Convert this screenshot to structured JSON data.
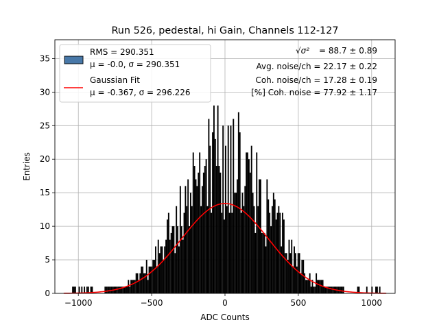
{
  "chart_data": {
    "type": "histogram",
    "title": "Run 526, pedestal, hi Gain, Channels 112-127",
    "xlabel": "ADC Counts",
    "ylabel": "Entries",
    "xlim": [
      -1160,
      1160
    ],
    "ylim": [
      0,
      37.8
    ],
    "xticks": [
      -1000,
      -500,
      0,
      500,
      1000
    ],
    "xtick_labels": [
      "−1000",
      "−500",
      "0",
      "500",
      "1000"
    ],
    "yticks": [
      0,
      5,
      10,
      15,
      20,
      25,
      30,
      35
    ],
    "ytick_labels": [
      "0",
      "5",
      "10",
      "15",
      "20",
      "25",
      "30",
      "35"
    ],
    "grid": true,
    "legend_position": "top-left",
    "histogram": {
      "label_line1": "RMS = 290.351",
      "label_line2": "μ = -0.0, σ = 290.351",
      "mean": 0.0,
      "sigma": 290.351,
      "range": [
        -1060,
        1060
      ],
      "approx_peak_entries": 20,
      "color": "#000000",
      "legend_color": "#4878a8"
    },
    "fit": {
      "label_line1": "Gaussian Fit",
      "label_line2": "μ = -0.367, σ = 296.226",
      "mean": -0.367,
      "sigma": 296.226,
      "amplitude": 13.4,
      "color": "#ff0000"
    },
    "annotations": [
      {
        "math": "√σ²",
        "text": " = 88.7 ± 0.89"
      },
      {
        "text": "Avg. noise/ch = 22.17 ± 0.22"
      },
      {
        "text": "Coh. noise/ch = 17.28 ± 0.19"
      },
      {
        "text": "[%] Coh. noise = 77.92 ± 1.17"
      }
    ]
  }
}
